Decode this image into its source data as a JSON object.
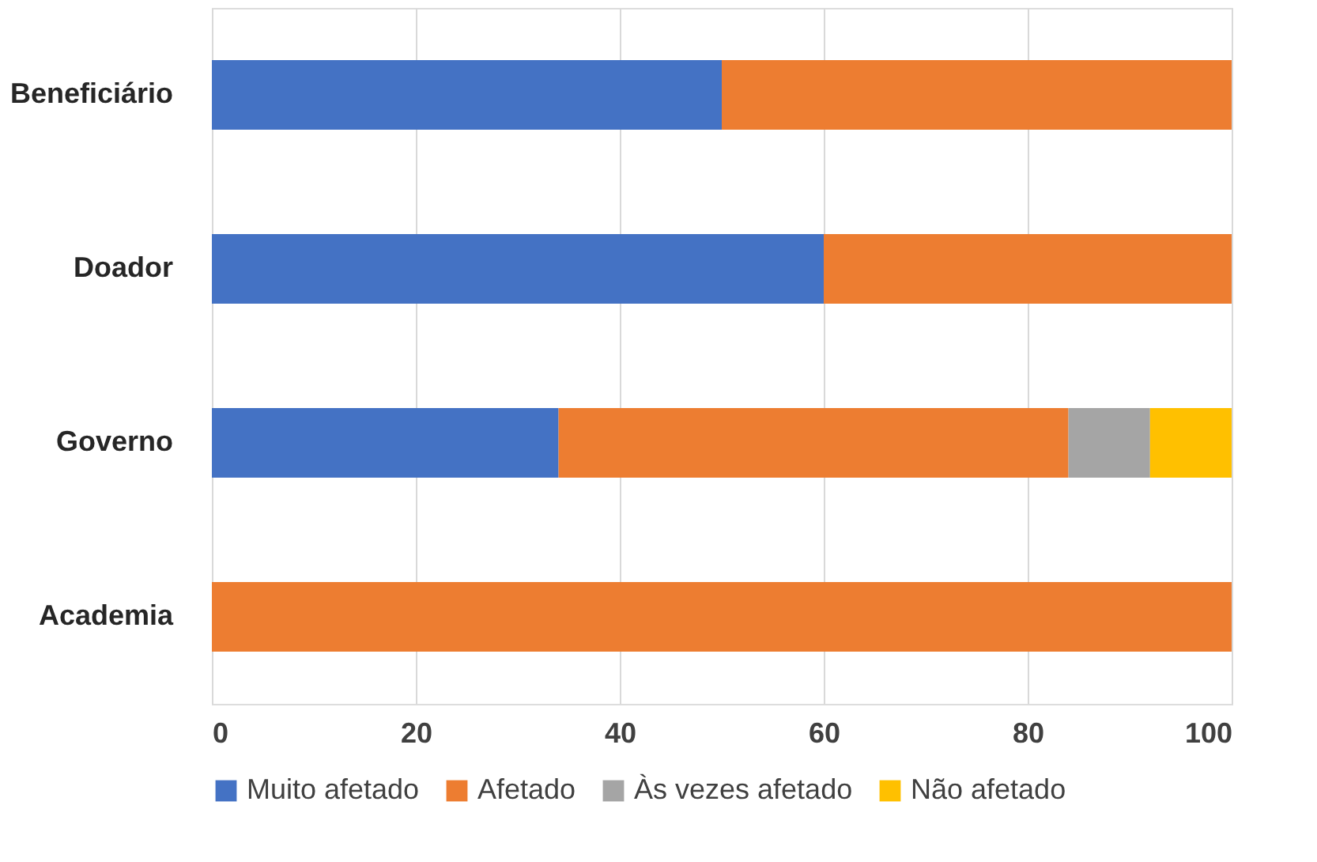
{
  "chart_data": {
    "type": "bar",
    "orientation": "horizontal",
    "stacked": true,
    "categories": [
      "Beneficiário",
      "Doador",
      "Governo",
      "Academia"
    ],
    "series": [
      {
        "name": "Muito afetado",
        "color": "#4472c4",
        "values": [
          50,
          60,
          34,
          0
        ]
      },
      {
        "name": "Afetado",
        "color": "#ed7d31",
        "values": [
          50,
          40,
          50,
          100
        ]
      },
      {
        "name": "Às vezes afetado",
        "color": "#a5a5a5",
        "values": [
          null,
          null,
          8,
          null
        ]
      },
      {
        "name": "Não afetado",
        "color": "#ffc000",
        "values": [
          null,
          null,
          8,
          null
        ]
      }
    ],
    "xlim": [
      0,
      100
    ],
    "xticks": [
      0,
      20,
      40,
      60,
      80,
      100
    ],
    "grid": "x",
    "legend": "bottom"
  }
}
